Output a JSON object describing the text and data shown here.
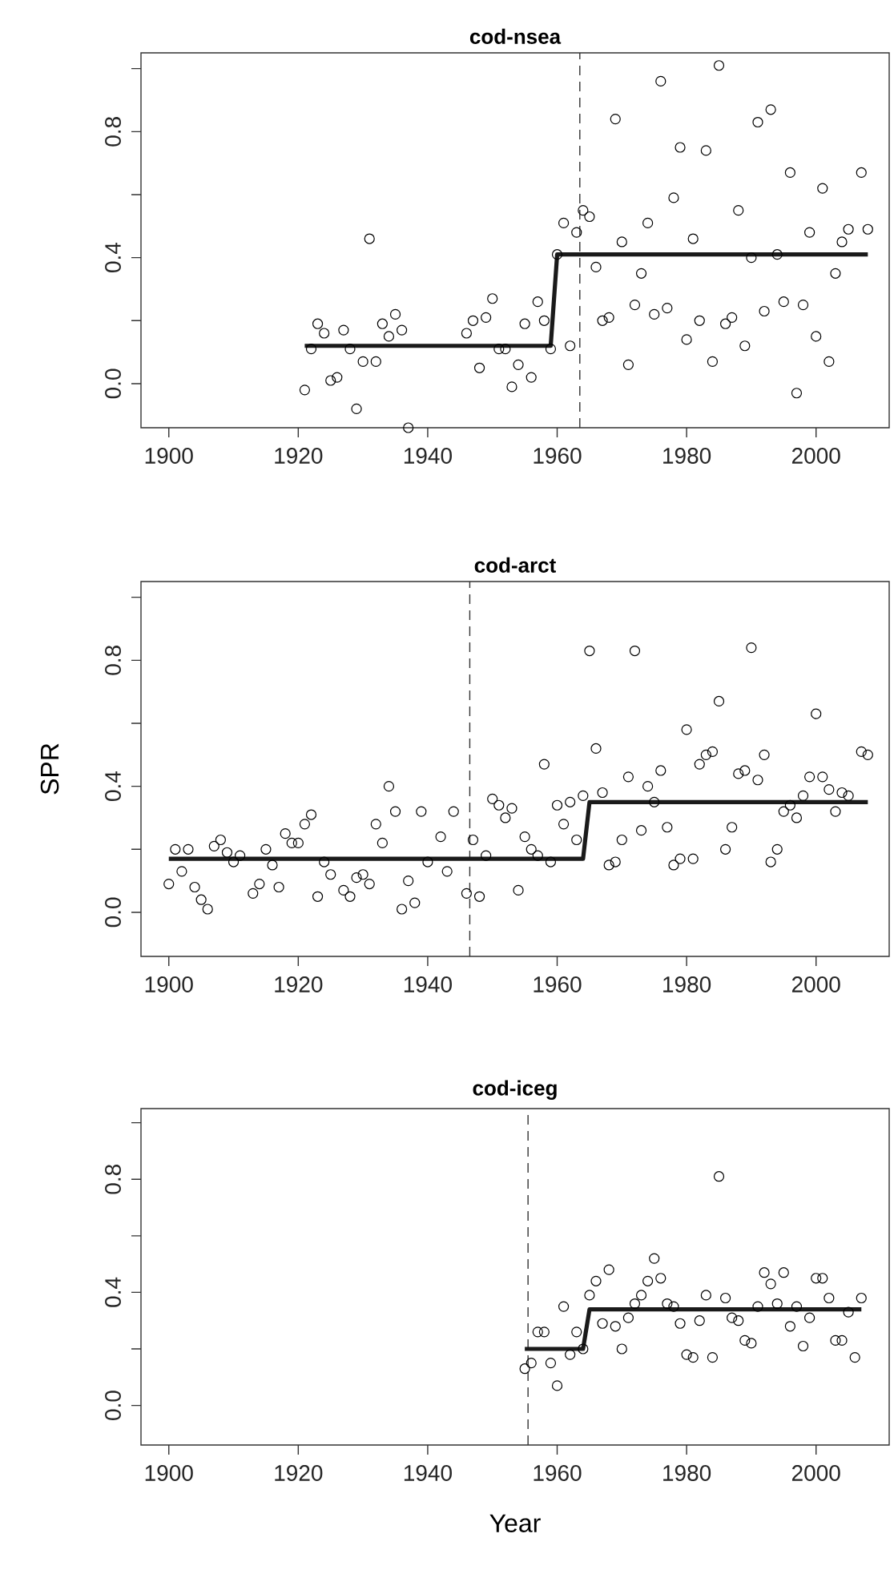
{
  "chart_data": [
    {
      "type": "scatter",
      "title": "cod-nsea",
      "xlim": [
        1895.7,
        2011.3
      ],
      "ylim": [
        -0.14,
        1.05
      ],
      "xticks": [
        1900,
        1920,
        1940,
        1960,
        1980,
        2000
      ],
      "yticks": [
        {
          "value": 0,
          "label": "0.0"
        },
        {
          "value": 0.2,
          "label": null
        },
        {
          "value": 0.4,
          "label": "0.4"
        },
        {
          "value": 0.6,
          "label": null
        },
        {
          "value": 0.8,
          "label": "0.8"
        },
        {
          "value": 1.0,
          "label": null
        }
      ],
      "ref_lines": [
        {
          "axis": "x",
          "value": 1963.5,
          "line_style": "dashed",
          "color": "#333333"
        }
      ],
      "series": [
        {
          "type": "scatter",
          "marker": "circle",
          "color": "#000000",
          "x": [
            1921,
            1922,
            1923,
            1924,
            1925,
            1926,
            1927,
            1928,
            1929,
            1930,
            1931,
            1932,
            1933,
            1934,
            1935,
            1936,
            1937,
            1946,
            1947,
            1948,
            1949,
            1950,
            1951,
            1952,
            1953,
            1954,
            1955,
            1956,
            1957,
            1958,
            1959,
            1960,
            1961,
            1962,
            1963,
            1964,
            1965,
            1966,
            1967,
            1968,
            1969,
            1970,
            1971,
            1972,
            1973,
            1974,
            1975,
            1976,
            1977,
            1978,
            1979,
            1980,
            1981,
            1982,
            1983,
            1984,
            1985,
            1986,
            1987,
            1988,
            1989,
            1990,
            1991,
            1992,
            1993,
            1994,
            1995,
            1996,
            1997,
            1998,
            1999,
            2000,
            2001,
            2002,
            2003,
            2004,
            2005,
            2007,
            2008
          ],
          "values": [
            -0.02,
            0.11,
            0.19,
            0.16,
            0.01,
            0.02,
            0.17,
            0.11,
            -0.08,
            0.07,
            0.46,
            0.07,
            0.19,
            0.15,
            0.22,
            0.17,
            -0.14,
            0.16,
            0.2,
            0.05,
            0.21,
            0.27,
            0.11,
            0.11,
            -0.01,
            0.06,
            0.19,
            0.02,
            0.26,
            0.2,
            0.11,
            0.41,
            0.51,
            0.12,
            0.48,
            0.55,
            0.53,
            0.37,
            0.2,
            0.21,
            0.84,
            0.45,
            0.06,
            0.25,
            0.35,
            0.51,
            0.22,
            0.96,
            0.24,
            0.59,
            0.75,
            0.14,
            0.46,
            0.2,
            0.74,
            0.07,
            1.01,
            0.19,
            0.21,
            0.55,
            0.12,
            0.4,
            0.83,
            0.23,
            0.87,
            0.41,
            0.26,
            0.67,
            -0.03,
            0.25,
            0.48,
            0.15,
            0.62,
            0.07,
            0.35,
            0.45,
            0.49,
            0.67,
            0.49
          ]
        },
        {
          "type": "line",
          "marker": "none",
          "color": "#1a1a1a",
          "x": [
            1921,
            1959,
            1960,
            2008
          ],
          "values": [
            0.12,
            0.12,
            0.41,
            0.41
          ]
        }
      ]
    },
    {
      "type": "scatter",
      "title": "cod-arct",
      "ylabel": "SPR",
      "xlim": [
        1895.7,
        2011.3
      ],
      "ylim": [
        -0.14,
        1.05
      ],
      "xticks": [
        1900,
        1920,
        1940,
        1960,
        1980,
        2000
      ],
      "yticks": [
        {
          "value": 0,
          "label": "0.0"
        },
        {
          "value": 0.2,
          "label": null
        },
        {
          "value": 0.4,
          "label": "0.4"
        },
        {
          "value": 0.6,
          "label": null
        },
        {
          "value": 0.8,
          "label": "0.8"
        },
        {
          "value": 1.0,
          "label": null
        }
      ],
      "ref_lines": [
        {
          "axis": "x",
          "value": 1946.5,
          "line_style": "dashed",
          "color": "#333333"
        }
      ],
      "series": [
        {
          "type": "scatter",
          "marker": "circle",
          "color": "#000000",
          "x": [
            1900,
            1901,
            1902,
            1903,
            1904,
            1905,
            1906,
            1907,
            1908,
            1909,
            1910,
            1911,
            1913,
            1914,
            1915,
            1916,
            1917,
            1918,
            1919,
            1920,
            1921,
            1922,
            1923,
            1924,
            1925,
            1927,
            1928,
            1929,
            1930,
            1931,
            1932,
            1933,
            1934,
            1935,
            1936,
            1937,
            1938,
            1939,
            1940,
            1942,
            1943,
            1944,
            1946,
            1947,
            1948,
            1949,
            1950,
            1951,
            1952,
            1953,
            1954,
            1955,
            1956,
            1957,
            1958,
            1959,
            1960,
            1961,
            1962,
            1963,
            1964,
            1965,
            1966,
            1967,
            1968,
            1969,
            1970,
            1971,
            1972,
            1973,
            1974,
            1975,
            1976,
            1977,
            1978,
            1979,
            1980,
            1981,
            1982,
            1983,
            1984,
            1985,
            1986,
            1987,
            1988,
            1989,
            1990,
            1991,
            1992,
            1993,
            1994,
            1995,
            1996,
            1997,
            1998,
            1999,
            2000,
            2001,
            2002,
            2003,
            2004,
            2005,
            2007,
            2008
          ],
          "values": [
            0.09,
            0.2,
            0.13,
            0.2,
            0.08,
            0.04,
            0.01,
            0.21,
            0.23,
            0.19,
            0.16,
            0.18,
            0.06,
            0.09,
            0.2,
            0.15,
            0.08,
            0.25,
            0.22,
            0.22,
            0.28,
            0.31,
            0.05,
            0.16,
            0.12,
            0.07,
            0.05,
            0.11,
            0.12,
            0.09,
            0.28,
            0.22,
            0.4,
            0.32,
            0.01,
            0.1,
            0.03,
            0.32,
            0.16,
            0.24,
            0.13,
            0.32,
            0.06,
            0.23,
            0.05,
            0.18,
            0.36,
            0.34,
            0.3,
            0.33,
            0.07,
            0.24,
            0.2,
            0.18,
            0.47,
            0.16,
            0.34,
            0.28,
            0.35,
            0.23,
            0.37,
            0.83,
            0.52,
            0.38,
            0.15,
            0.16,
            0.23,
            0.43,
            0.83,
            0.26,
            0.4,
            0.35,
            0.45,
            0.27,
            0.15,
            0.17,
            0.58,
            0.17,
            0.47,
            0.5,
            0.51,
            0.67,
            0.2,
            0.27,
            0.44,
            0.45,
            0.84,
            0.42,
            0.5,
            0.16,
            0.2,
            0.32,
            0.34,
            0.3,
            0.37,
            0.43,
            0.63,
            0.43,
            0.39,
            0.32,
            0.38,
            0.37,
            0.51,
            0.5
          ]
        },
        {
          "type": "line",
          "marker": "none",
          "color": "#1a1a1a",
          "x": [
            1900,
            1964,
            1965,
            2008
          ],
          "values": [
            0.17,
            0.17,
            0.35,
            0.35
          ]
        }
      ]
    },
    {
      "type": "scatter",
      "title": "cod-iceg",
      "xlabel": "Year",
      "xlim": [
        1895.7,
        2011.3
      ],
      "ylim": [
        -0.14,
        1.05
      ],
      "xticks": [
        1900,
        1920,
        1940,
        1960,
        1980,
        2000
      ],
      "yticks": [
        {
          "value": 0,
          "label": "0.0"
        },
        {
          "value": 0.2,
          "label": null
        },
        {
          "value": 0.4,
          "label": "0.4"
        },
        {
          "value": 0.6,
          "label": null
        },
        {
          "value": 0.8,
          "label": "0.8"
        },
        {
          "value": 1.0,
          "label": null
        }
      ],
      "ref_lines": [
        {
          "axis": "x",
          "value": 1955.5,
          "line_style": "dashed",
          "color": "#333333"
        }
      ],
      "series": [
        {
          "type": "scatter",
          "marker": "circle",
          "color": "#000000",
          "x": [
            1955,
            1956,
            1957,
            1958,
            1959,
            1960,
            1961,
            1962,
            1963,
            1964,
            1965,
            1966,
            1967,
            1968,
            1969,
            1970,
            1971,
            1972,
            1973,
            1974,
            1975,
            1976,
            1977,
            1978,
            1979,
            1980,
            1981,
            1982,
            1983,
            1984,
            1985,
            1986,
            1987,
            1988,
            1989,
            1990,
            1991,
            1992,
            1993,
            1994,
            1995,
            1996,
            1997,
            1998,
            1999,
            2000,
            2001,
            2002,
            2003,
            2004,
            2005,
            2006,
            2007
          ],
          "values": [
            0.13,
            0.15,
            0.26,
            0.26,
            0.15,
            0.07,
            0.35,
            0.18,
            0.26,
            0.2,
            0.39,
            0.44,
            0.29,
            0.48,
            0.28,
            0.2,
            0.31,
            0.36,
            0.39,
            0.44,
            0.52,
            0.45,
            0.36,
            0.35,
            0.29,
            0.18,
            0.17,
            0.3,
            0.39,
            0.17,
            0.81,
            0.38,
            0.31,
            0.3,
            0.23,
            0.22,
            0.35,
            0.47,
            0.43,
            0.36,
            0.47,
            0.28,
            0.35,
            0.21,
            0.31,
            0.45,
            0.45,
            0.38,
            0.23,
            0.23,
            0.33,
            0.17,
            0.38
          ]
        },
        {
          "type": "line",
          "marker": "none",
          "color": "#1a1a1a",
          "x": [
            1955,
            1964,
            1965,
            2007
          ],
          "values": [
            0.2,
            0.2,
            0.34,
            0.34
          ]
        }
      ]
    }
  ]
}
